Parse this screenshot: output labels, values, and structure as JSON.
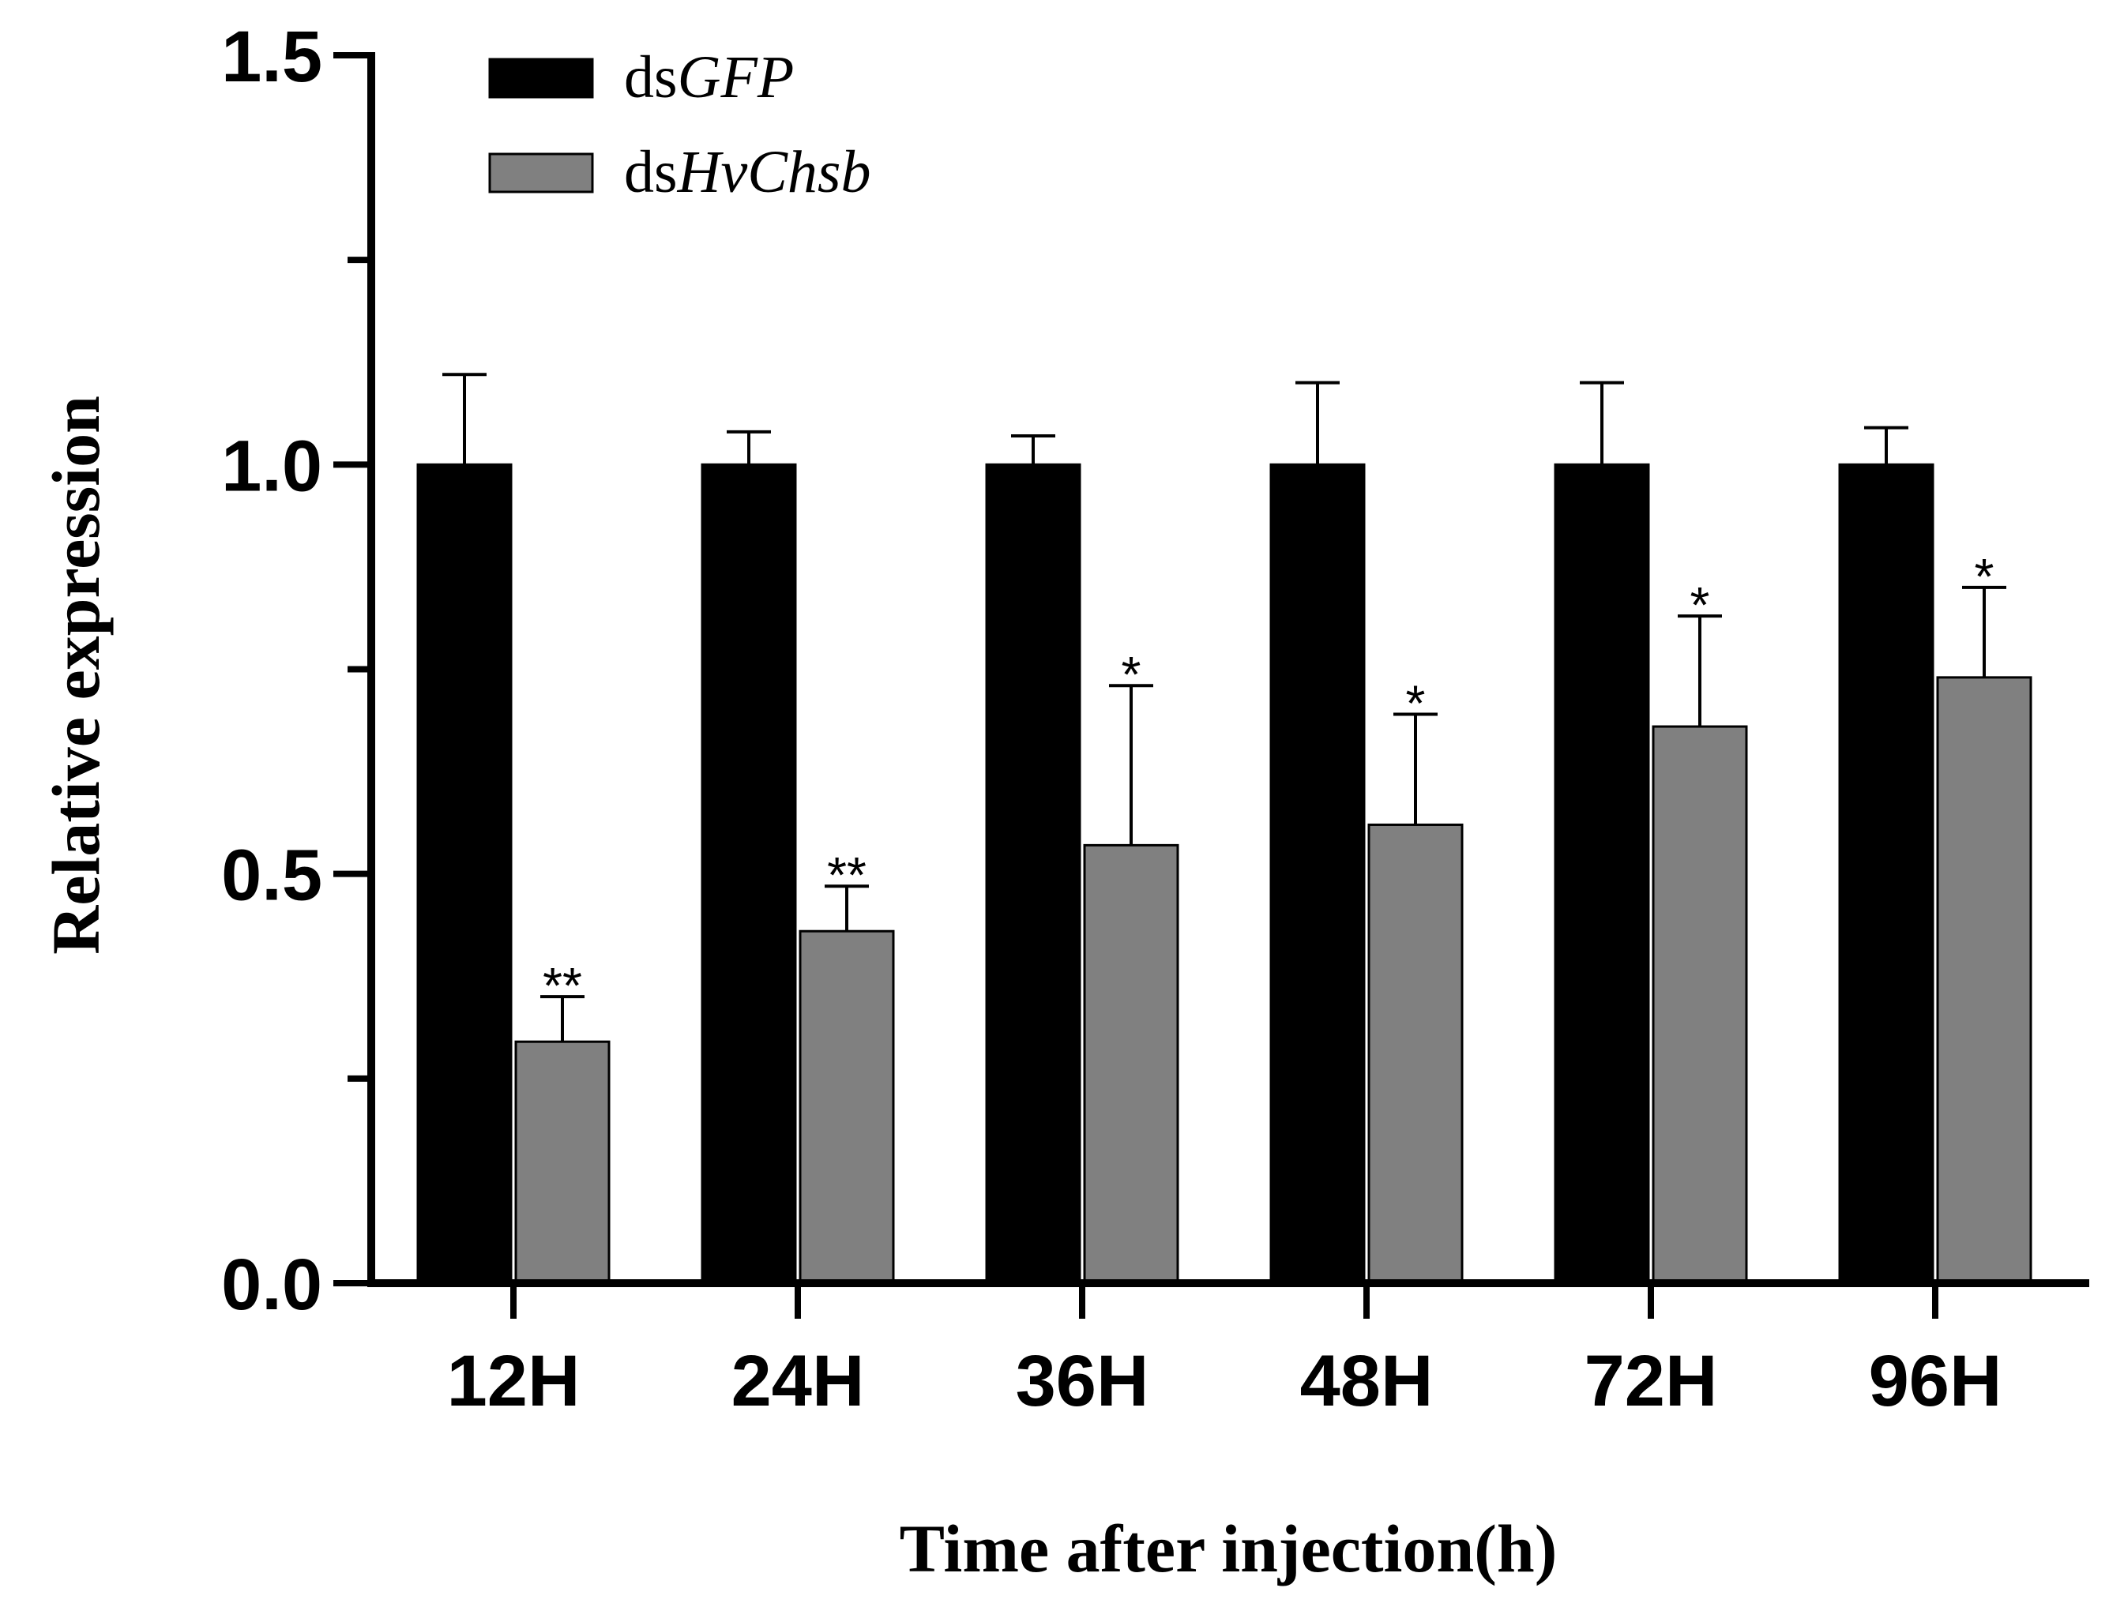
{
  "chart_data": {
    "type": "bar",
    "categories": [
      "12H",
      "24H",
      "36H",
      "48H",
      "72H",
      "96H"
    ],
    "series": [
      {
        "name_prefix": "ds",
        "name_gene": "GFP",
        "name": "dsGFP",
        "color": "#000000",
        "values": [
          1.0,
          1.0,
          1.0,
          1.0,
          1.0,
          1.0
        ],
        "errors": [
          0.11,
          0.04,
          0.035,
          0.1,
          0.1,
          0.045
        ]
      },
      {
        "name_prefix": "ds",
        "name_gene": "HvChsb",
        "name": "dsHvChsb",
        "color": "#808080",
        "values": [
          0.295,
          0.43,
          0.535,
          0.56,
          0.68,
          0.74
        ],
        "errors": [
          0.055,
          0.055,
          0.195,
          0.135,
          0.135,
          0.11
        ],
        "significance": [
          "**",
          "**",
          "*",
          "*",
          "*",
          "*"
        ]
      }
    ],
    "xlabel": "Time after injection(h)",
    "ylabel": "Relative expression",
    "ylim": [
      0,
      1.5
    ],
    "yticks": [
      "0.0",
      "0.5",
      "1.0",
      "1.5"
    ],
    "legend_position": "top-left",
    "grid": false
  }
}
